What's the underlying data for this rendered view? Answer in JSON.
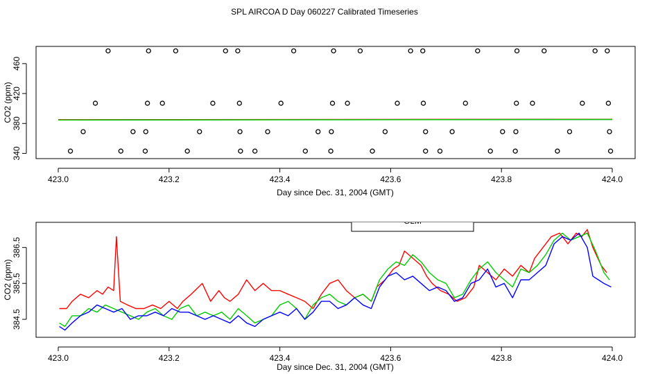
{
  "figure_title": "SPL AIRCOA D  Day 060227  Calibrated Timeseries",
  "chart_data": [
    {
      "type": "scatter",
      "title": "",
      "xlabel": "Day since Dec. 31, 2004 (GMT)",
      "ylabel": "CO2 (ppm)",
      "xlim": [
        423.0,
        424.0
      ],
      "ylim": [
        333,
        483
      ],
      "xticks": [
        {
          "v": 423.0,
          "label": "423.0"
        },
        {
          "v": 423.2,
          "label": "423.2"
        },
        {
          "v": 423.4,
          "label": "423.4"
        },
        {
          "v": 423.6,
          "label": "423.6"
        },
        {
          "v": 423.8,
          "label": "423.8"
        },
        {
          "v": 424.0,
          "label": "424.0"
        }
      ],
      "yticks": [
        {
          "v": 340,
          "label": "340"
        },
        {
          "v": 380,
          "label": "380"
        },
        {
          "v": 420,
          "label": "420"
        },
        {
          "v": 460,
          "label": "460"
        }
      ],
      "points": [
        {
          "x": 423.09,
          "y": 477
        },
        {
          "x": 423.163,
          "y": 477
        },
        {
          "x": 423.212,
          "y": 477
        },
        {
          "x": 423.302,
          "y": 477
        },
        {
          "x": 423.324,
          "y": 477
        },
        {
          "x": 423.425,
          "y": 477
        },
        {
          "x": 423.497,
          "y": 477
        },
        {
          "x": 423.545,
          "y": 477
        },
        {
          "x": 423.636,
          "y": 477
        },
        {
          "x": 423.658,
          "y": 477
        },
        {
          "x": 423.757,
          "y": 477
        },
        {
          "x": 423.828,
          "y": 477
        },
        {
          "x": 423.877,
          "y": 477
        },
        {
          "x": 423.969,
          "y": 477
        },
        {
          "x": 423.991,
          "y": 477
        },
        {
          "x": 423.067,
          "y": 407
        },
        {
          "x": 423.161,
          "y": 407
        },
        {
          "x": 423.188,
          "y": 407
        },
        {
          "x": 423.279,
          "y": 407
        },
        {
          "x": 423.327,
          "y": 407
        },
        {
          "x": 423.402,
          "y": 407
        },
        {
          "x": 423.495,
          "y": 407
        },
        {
          "x": 423.522,
          "y": 407
        },
        {
          "x": 423.612,
          "y": 407
        },
        {
          "x": 423.659,
          "y": 407
        },
        {
          "x": 423.735,
          "y": 407
        },
        {
          "x": 423.827,
          "y": 407
        },
        {
          "x": 423.856,
          "y": 407
        },
        {
          "x": 423.946,
          "y": 407
        },
        {
          "x": 423.993,
          "y": 407
        },
        {
          "x": 423.045,
          "y": 369
        },
        {
          "x": 423.135,
          "y": 369
        },
        {
          "x": 423.158,
          "y": 369
        },
        {
          "x": 423.255,
          "y": 369
        },
        {
          "x": 423.328,
          "y": 369
        },
        {
          "x": 423.378,
          "y": 369
        },
        {
          "x": 423.469,
          "y": 369
        },
        {
          "x": 423.493,
          "y": 369
        },
        {
          "x": 423.59,
          "y": 369
        },
        {
          "x": 423.663,
          "y": 369
        },
        {
          "x": 423.711,
          "y": 369
        },
        {
          "x": 423.802,
          "y": 369
        },
        {
          "x": 423.826,
          "y": 369
        },
        {
          "x": 423.923,
          "y": 369
        },
        {
          "x": 423.995,
          "y": 369
        },
        {
          "x": 423.022,
          "y": 343
        },
        {
          "x": 423.113,
          "y": 343
        },
        {
          "x": 423.157,
          "y": 343
        },
        {
          "x": 423.233,
          "y": 343
        },
        {
          "x": 423.329,
          "y": 343
        },
        {
          "x": 423.355,
          "y": 343
        },
        {
          "x": 423.446,
          "y": 343
        },
        {
          "x": 423.492,
          "y": 343
        },
        {
          "x": 423.567,
          "y": 343
        },
        {
          "x": 423.663,
          "y": 343
        },
        {
          "x": 423.689,
          "y": 343
        },
        {
          "x": 423.78,
          "y": 343
        },
        {
          "x": 423.825,
          "y": 343
        },
        {
          "x": 423.901,
          "y": 343
        },
        {
          "x": 423.997,
          "y": 343
        }
      ],
      "series": [
        {
          "name": "blue",
          "color": "#0000ff",
          "x": [
            423.0,
            424.0
          ],
          "y": [
            384.8,
            385.4
          ]
        },
        {
          "name": "red",
          "color": "#ff0000",
          "x": [
            423.0,
            424.0
          ],
          "y": [
            385.0,
            385.6
          ]
        },
        {
          "name": "green",
          "color": "#00cc00",
          "x": [
            423.0,
            424.0
          ],
          "y": [
            384.6,
            385.3
          ]
        }
      ]
    },
    {
      "type": "line",
      "title": "",
      "xlabel": "Day since Dec. 31, 2004 (GMT)",
      "ylabel": "CO2 (ppm)",
      "xlim": [
        423.0,
        424.0
      ],
      "ylim": [
        384.0,
        387.2
      ],
      "xticks": [
        {
          "v": 423.0,
          "label": "423.0"
        },
        {
          "v": 423.2,
          "label": "423.2"
        },
        {
          "v": 423.4,
          "label": "423.4"
        },
        {
          "v": 423.6,
          "label": "423.6"
        },
        {
          "v": 423.8,
          "label": "423.8"
        },
        {
          "v": 424.0,
          "label": "424.0"
        }
      ],
      "yticks": [
        {
          "v": 384.5,
          "label": "384.5"
        },
        {
          "v": 385.5,
          "label": "385.5"
        },
        {
          "v": 386.5,
          "label": "386.5"
        }
      ],
      "series": [
        {
          "name": "red",
          "color": "#ff0000",
          "x": [
            423.002,
            423.015,
            423.025,
            423.04,
            423.055,
            423.07,
            423.08,
            423.09,
            423.1,
            423.105,
            423.112,
            423.125,
            423.14,
            423.155,
            423.17,
            423.185,
            423.2,
            423.215,
            423.225,
            423.24,
            423.26,
            423.275,
            423.29,
            423.3,
            423.31,
            423.325,
            423.34,
            423.355,
            423.37,
            423.385,
            423.4,
            423.415,
            423.43,
            423.445,
            423.46,
            423.475,
            423.49,
            423.505,
            423.52,
            423.535,
            423.55,
            423.565,
            423.575,
            423.59,
            423.605,
            423.615,
            423.625,
            423.64,
            423.655,
            423.665,
            423.675,
            423.69,
            423.705,
            423.72,
            423.735,
            423.75,
            423.76,
            423.775,
            423.79,
            423.805,
            423.82,
            423.835,
            423.85,
            423.86,
            423.875,
            423.89,
            423.905,
            423.92,
            423.935,
            423.945,
            423.955,
            423.965,
            423.98,
            423.99
          ],
          "y": [
            384.8,
            384.8,
            385.0,
            385.2,
            385.1,
            385.3,
            385.2,
            385.4,
            385.3,
            386.8,
            385.0,
            384.9,
            384.8,
            384.8,
            384.9,
            384.8,
            385.0,
            384.8,
            385.0,
            385.2,
            385.5,
            385.0,
            385.3,
            385.1,
            385.0,
            385.2,
            385.6,
            385.3,
            385.5,
            385.3,
            385.3,
            385.2,
            385.1,
            385.0,
            384.8,
            385.2,
            385.5,
            385.6,
            385.3,
            385.1,
            385.2,
            385.0,
            385.4,
            385.6,
            385.9,
            386.0,
            386.4,
            386.2,
            386.0,
            385.7,
            385.5,
            385.3,
            385.2,
            385.0,
            385.1,
            385.4,
            386.0,
            385.8,
            385.6,
            385.9,
            385.7,
            386.0,
            385.8,
            386.2,
            386.5,
            386.8,
            386.9,
            386.6,
            386.9,
            386.8,
            387.0,
            386.5,
            386.0,
            385.8
          ]
        },
        {
          "name": "green",
          "color": "#00cc00",
          "x": [
            423.002,
            423.012,
            423.025,
            423.04,
            423.055,
            423.07,
            423.085,
            423.1,
            423.115,
            423.13,
            423.145,
            423.16,
            423.175,
            423.19,
            423.205,
            423.22,
            423.235,
            423.25,
            423.265,
            423.28,
            423.295,
            423.31,
            423.325,
            423.34,
            423.355,
            423.37,
            423.385,
            423.4,
            423.415,
            423.43,
            423.445,
            423.46,
            423.475,
            423.49,
            423.505,
            423.52,
            423.535,
            423.55,
            423.565,
            423.58,
            423.595,
            423.61,
            423.625,
            423.64,
            423.655,
            423.67,
            423.685,
            423.7,
            423.715,
            423.73,
            423.745,
            423.76,
            423.775,
            423.79,
            423.805,
            423.82,
            423.835,
            423.85,
            423.865,
            423.88,
            423.895,
            423.91,
            423.925,
            423.94,
            423.955,
            423.97,
            423.985,
            423.995
          ],
          "y": [
            384.4,
            384.3,
            384.6,
            384.6,
            384.8,
            384.7,
            384.9,
            384.8,
            384.7,
            384.6,
            384.5,
            384.7,
            384.8,
            384.6,
            384.5,
            384.8,
            384.9,
            384.6,
            384.7,
            384.6,
            384.7,
            384.5,
            384.8,
            384.6,
            384.4,
            384.5,
            384.6,
            384.9,
            385.0,
            384.8,
            384.5,
            384.9,
            385.1,
            385.2,
            385.0,
            384.9,
            385.1,
            385.2,
            385.0,
            385.6,
            385.9,
            386.1,
            386.0,
            386.3,
            386.1,
            385.8,
            385.6,
            385.5,
            385.1,
            385.2,
            385.6,
            385.9,
            386.1,
            385.8,
            385.6,
            385.4,
            385.9,
            385.8,
            386.0,
            386.3,
            386.7,
            386.9,
            386.7,
            386.8,
            386.9,
            386.4,
            385.8,
            385.6
          ]
        },
        {
          "name": "blue",
          "color": "#0000ff",
          "x": [
            423.002,
            423.012,
            423.025,
            423.04,
            423.055,
            423.07,
            423.085,
            423.1,
            423.115,
            423.13,
            423.145,
            423.16,
            423.175,
            423.19,
            423.205,
            423.22,
            423.235,
            423.25,
            423.265,
            423.28,
            423.295,
            423.31,
            423.325,
            423.34,
            423.355,
            423.37,
            423.385,
            423.4,
            423.415,
            423.43,
            423.445,
            423.46,
            423.475,
            423.49,
            423.505,
            423.52,
            423.535,
            423.55,
            423.565,
            423.58,
            423.595,
            423.61,
            423.625,
            423.64,
            423.655,
            423.67,
            423.685,
            423.7,
            423.715,
            423.73,
            423.745,
            423.76,
            423.775,
            423.79,
            423.805,
            423.82,
            423.835,
            423.85,
            423.865,
            423.88,
            423.895,
            423.91,
            423.925,
            423.94,
            423.955,
            423.965,
            423.975,
            423.985,
            423.998
          ],
          "y": [
            384.3,
            384.2,
            384.4,
            384.6,
            384.7,
            384.9,
            384.8,
            384.7,
            384.8,
            384.5,
            384.6,
            384.6,
            384.7,
            384.6,
            384.8,
            384.7,
            384.7,
            384.6,
            384.5,
            384.6,
            384.5,
            384.4,
            384.6,
            384.4,
            384.3,
            384.5,
            384.6,
            384.7,
            384.6,
            384.8,
            384.5,
            384.7,
            385.0,
            385.0,
            384.8,
            384.9,
            385.1,
            384.9,
            384.8,
            385.4,
            385.7,
            385.8,
            385.6,
            385.7,
            385.5,
            385.3,
            385.4,
            385.3,
            385.0,
            385.1,
            385.5,
            385.6,
            385.9,
            385.4,
            385.5,
            385.1,
            385.6,
            385.6,
            385.8,
            386.0,
            386.6,
            386.8,
            386.7,
            386.9,
            386.5,
            385.7,
            385.6,
            385.5,
            385.4
          ]
        }
      ],
      "legend": {
        "text": "GLM",
        "placement": "top-center"
      }
    }
  ]
}
